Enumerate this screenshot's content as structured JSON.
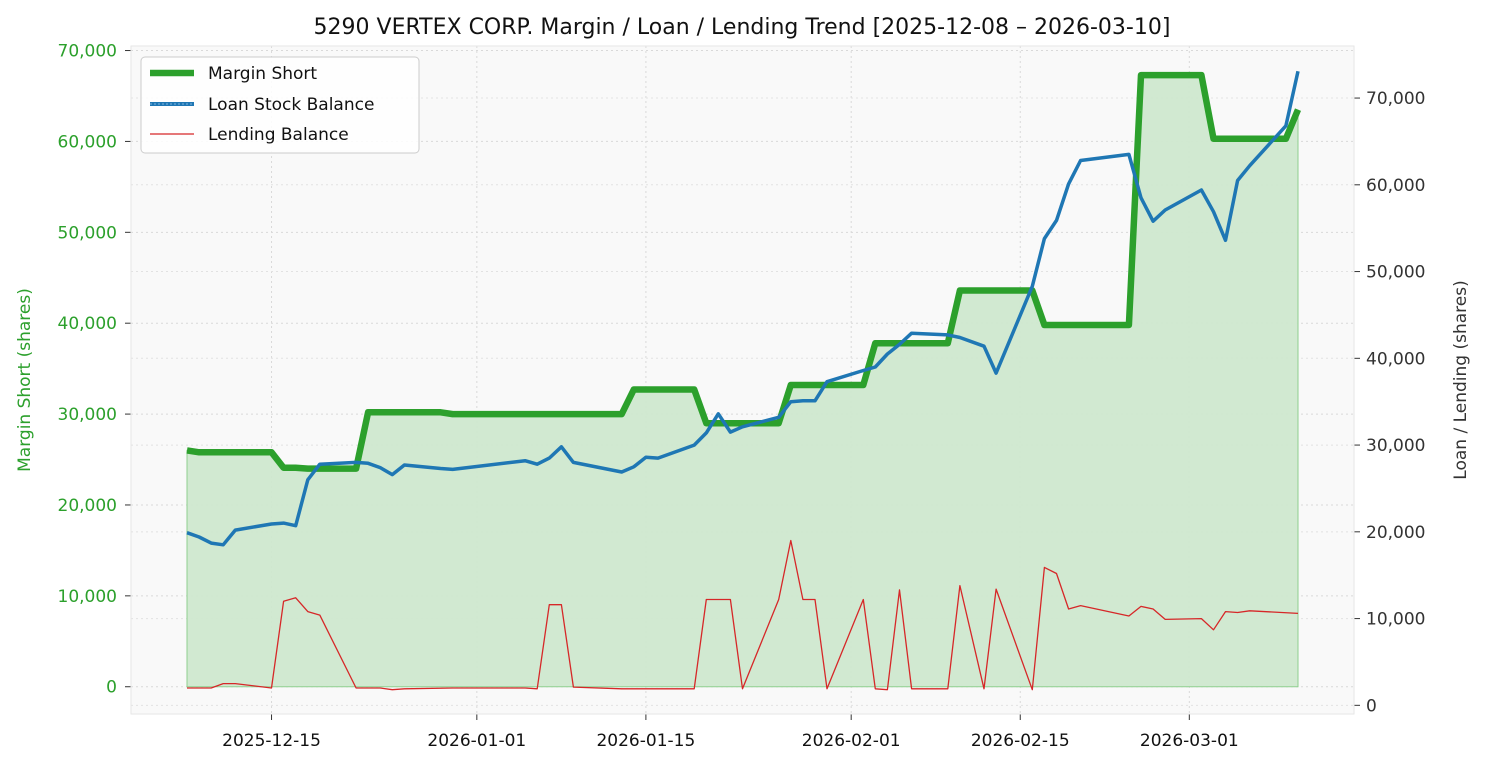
{
  "chart_data": {
    "type": "line",
    "title": "5290 VERTEX CORP. Margin / Loan / Lending Trend [2025-12-08 – 2026-03-10]",
    "ylabel_left": "Margin Short (shares)",
    "ylabel_right": "Loan / Lending (shares)",
    "xlabel": "",
    "grid": true,
    "legend_position": "top-left",
    "colors": {
      "margin": "#2ca02c",
      "margin_fill": "#cfe8cf",
      "loan": "#1f77b4",
      "lending": "#d62728",
      "plot_bg": "#f9f9f9",
      "left_tick": "#2ca02c",
      "right_tick": "#333333"
    },
    "x_ticks": [
      "2025-12-15",
      "2026-01-01",
      "2026-01-15",
      "2026-02-01",
      "2026-02-15",
      "2026-03-01"
    ],
    "ylim_left": [
      -3000,
      70500
    ],
    "ylim_right": [
      -1000,
      76000
    ],
    "yticks_left": [
      0,
      10000,
      20000,
      30000,
      40000,
      50000,
      60000,
      70000
    ],
    "yticks_left_labels": [
      "0",
      "10,000",
      "20,000",
      "30,000",
      "40,000",
      "50,000",
      "60,000",
      "70,000"
    ],
    "yticks_right": [
      0,
      10000,
      20000,
      30000,
      40000,
      50000,
      60000,
      70000
    ],
    "yticks_right_labels": [
      "0",
      "10,000",
      "20,000",
      "30,000",
      "40,000",
      "50,000",
      "60,000",
      "70,000"
    ],
    "series": [
      {
        "name": "Margin Short",
        "axis": "left",
        "points": [
          [
            "2025-12-08",
            26000
          ],
          [
            "2025-12-09",
            25800
          ],
          [
            "2025-12-10",
            25800
          ],
          [
            "2025-12-11",
            25800
          ],
          [
            "2025-12-12",
            25800
          ],
          [
            "2025-12-15",
            25800
          ],
          [
            "2025-12-16",
            24100
          ],
          [
            "2025-12-17",
            24100
          ],
          [
            "2025-12-18",
            24000
          ],
          [
            "2025-12-19",
            24000
          ],
          [
            "2025-12-22",
            24000
          ],
          [
            "2025-12-23",
            30200
          ],
          [
            "2025-12-26",
            30200
          ],
          [
            "2025-12-29",
            30200
          ],
          [
            "2025-12-30",
            30000
          ],
          [
            "2026-01-05",
            30000
          ],
          [
            "2026-01-06",
            30000
          ],
          [
            "2026-01-07",
            30000
          ],
          [
            "2026-01-08",
            30000
          ],
          [
            "2026-01-09",
            30000
          ],
          [
            "2026-01-13",
            30000
          ],
          [
            "2026-01-14",
            32700
          ],
          [
            "2026-01-16",
            32700
          ],
          [
            "2026-01-19",
            32700
          ],
          [
            "2026-01-20",
            29000
          ],
          [
            "2026-01-21",
            29000
          ],
          [
            "2026-01-22",
            29000
          ],
          [
            "2026-01-23",
            29000
          ],
          [
            "2026-01-26",
            29000
          ],
          [
            "2026-01-27",
            33200
          ],
          [
            "2026-01-28",
            33200
          ],
          [
            "2026-01-29",
            33200
          ],
          [
            "2026-01-30",
            33200
          ],
          [
            "2026-02-02",
            33200
          ],
          [
            "2026-02-03",
            37800
          ],
          [
            "2026-02-04",
            37800
          ],
          [
            "2026-02-05",
            37800
          ],
          [
            "2026-02-06",
            37800
          ],
          [
            "2026-02-09",
            37800
          ],
          [
            "2026-02-10",
            43600
          ],
          [
            "2026-02-12",
            43600
          ],
          [
            "2026-02-13",
            43600
          ],
          [
            "2026-02-16",
            43600
          ],
          [
            "2026-02-17",
            39800
          ],
          [
            "2026-02-18",
            39800
          ],
          [
            "2026-02-19",
            39800
          ],
          [
            "2026-02-20",
            39800
          ],
          [
            "2026-02-24",
            39800
          ],
          [
            "2026-02-25",
            67300
          ],
          [
            "2026-02-26",
            67300
          ],
          [
            "2026-02-27",
            67300
          ],
          [
            "2026-03-02",
            67300
          ],
          [
            "2026-03-03",
            60300
          ],
          [
            "2026-03-04",
            60300
          ],
          [
            "2026-03-05",
            60300
          ],
          [
            "2026-03-06",
            60300
          ],
          [
            "2026-03-09",
            60300
          ],
          [
            "2026-03-10",
            63500
          ]
        ]
      },
      {
        "name": "Loan Stock Balance",
        "axis": "right",
        "points": [
          [
            "2025-12-08",
            19900
          ],
          [
            "2025-12-09",
            19400
          ],
          [
            "2025-12-10",
            18700
          ],
          [
            "2025-12-11",
            18500
          ],
          [
            "2025-12-12",
            20200
          ],
          [
            "2025-12-15",
            20900
          ],
          [
            "2025-12-16",
            21000
          ],
          [
            "2025-12-17",
            20700
          ],
          [
            "2025-12-18",
            26000
          ],
          [
            "2025-12-19",
            27800
          ],
          [
            "2025-12-22",
            28000
          ],
          [
            "2025-12-23",
            27900
          ],
          [
            "2025-12-24",
            27400
          ],
          [
            "2025-12-25",
            26600
          ],
          [
            "2025-12-26",
            27700
          ],
          [
            "2025-12-29",
            27300
          ],
          [
            "2025-12-30",
            27200
          ],
          [
            "2026-01-05",
            28200
          ],
          [
            "2026-01-06",
            27800
          ],
          [
            "2026-01-07",
            28500
          ],
          [
            "2026-01-08",
            29800
          ],
          [
            "2026-01-09",
            28000
          ],
          [
            "2026-01-13",
            26900
          ],
          [
            "2026-01-14",
            27500
          ],
          [
            "2026-01-15",
            28600
          ],
          [
            "2026-01-16",
            28500
          ],
          [
            "2026-01-19",
            30000
          ],
          [
            "2026-01-20",
            31400
          ],
          [
            "2026-01-21",
            33600
          ],
          [
            "2026-01-22",
            31500
          ],
          [
            "2026-01-23",
            32100
          ],
          [
            "2026-01-26",
            33200
          ],
          [
            "2026-01-27",
            35000
          ],
          [
            "2026-01-28",
            35100
          ],
          [
            "2026-01-29",
            35100
          ],
          [
            "2026-01-30",
            37300
          ],
          [
            "2026-02-02",
            38600
          ],
          [
            "2026-02-03",
            39000
          ],
          [
            "2026-02-04",
            40500
          ],
          [
            "2026-02-05",
            41600
          ],
          [
            "2026-02-06",
            42900
          ],
          [
            "2026-02-09",
            42700
          ],
          [
            "2026-02-10",
            42400
          ],
          [
            "2026-02-12",
            41400
          ],
          [
            "2026-02-13",
            38300
          ],
          [
            "2026-02-16",
            48300
          ],
          [
            "2026-02-17",
            53800
          ],
          [
            "2026-02-18",
            55900
          ],
          [
            "2026-02-19",
            60100
          ],
          [
            "2026-02-20",
            62800
          ],
          [
            "2026-02-24",
            63500
          ],
          [
            "2026-02-25",
            58500
          ],
          [
            "2026-02-26",
            55800
          ],
          [
            "2026-02-27",
            57100
          ],
          [
            "2026-03-02",
            59400
          ],
          [
            "2026-03-03",
            56900
          ],
          [
            "2026-03-04",
            53600
          ],
          [
            "2026-03-05",
            60500
          ],
          [
            "2026-03-06",
            62200
          ],
          [
            "2026-03-09",
            66800
          ],
          [
            "2026-03-10",
            73100
          ]
        ]
      },
      {
        "name": "Lending Balance",
        "axis": "right",
        "points": [
          [
            "2025-12-08",
            2000
          ],
          [
            "2025-12-09",
            2000
          ],
          [
            "2025-12-10",
            2000
          ],
          [
            "2025-12-11",
            2500
          ],
          [
            "2025-12-12",
            2500
          ],
          [
            "2025-12-15",
            2000
          ],
          [
            "2025-12-16",
            12000
          ],
          [
            "2025-12-17",
            12400
          ],
          [
            "2025-12-18",
            10800
          ],
          [
            "2025-12-19",
            10400
          ],
          [
            "2025-12-22",
            2000
          ],
          [
            "2025-12-23",
            2000
          ],
          [
            "2025-12-24",
            2000
          ],
          [
            "2025-12-25",
            1800
          ],
          [
            "2025-12-26",
            1900
          ],
          [
            "2025-12-30",
            2000
          ],
          [
            "2026-01-05",
            2000
          ],
          [
            "2026-01-06",
            1900
          ],
          [
            "2026-01-07",
            11600
          ],
          [
            "2026-01-08",
            11600
          ],
          [
            "2026-01-09",
            2100
          ],
          [
            "2026-01-13",
            1900
          ],
          [
            "2026-01-19",
            1900
          ],
          [
            "2026-01-20",
            12200
          ],
          [
            "2026-01-22",
            12200
          ],
          [
            "2026-01-23",
            1900
          ],
          [
            "2026-01-26",
            12200
          ],
          [
            "2026-01-27",
            19000
          ],
          [
            "2026-01-28",
            12200
          ],
          [
            "2026-01-29",
            12200
          ],
          [
            "2026-01-30",
            1900
          ],
          [
            "2026-02-02",
            12200
          ],
          [
            "2026-02-03",
            1900
          ],
          [
            "2026-02-04",
            1800
          ],
          [
            "2026-02-05",
            13300
          ],
          [
            "2026-02-06",
            1900
          ],
          [
            "2026-02-09",
            1900
          ],
          [
            "2026-02-10",
            13800
          ],
          [
            "2026-02-12",
            1900
          ],
          [
            "2026-02-13",
            13400
          ],
          [
            "2026-02-16",
            1800
          ],
          [
            "2026-02-17",
            15900
          ],
          [
            "2026-02-18",
            15200
          ],
          [
            "2026-02-19",
            11100
          ],
          [
            "2026-02-20",
            11500
          ],
          [
            "2026-02-24",
            10300
          ],
          [
            "2026-02-25",
            11400
          ],
          [
            "2026-02-26",
            11100
          ],
          [
            "2026-02-27",
            9900
          ],
          [
            "2026-03-02",
            10000
          ],
          [
            "2026-03-03",
            8700
          ],
          [
            "2026-03-04",
            10800
          ],
          [
            "2026-03-05",
            10700
          ],
          [
            "2026-03-06",
            10900
          ],
          [
            "2026-03-10",
            10600
          ]
        ]
      }
    ]
  }
}
